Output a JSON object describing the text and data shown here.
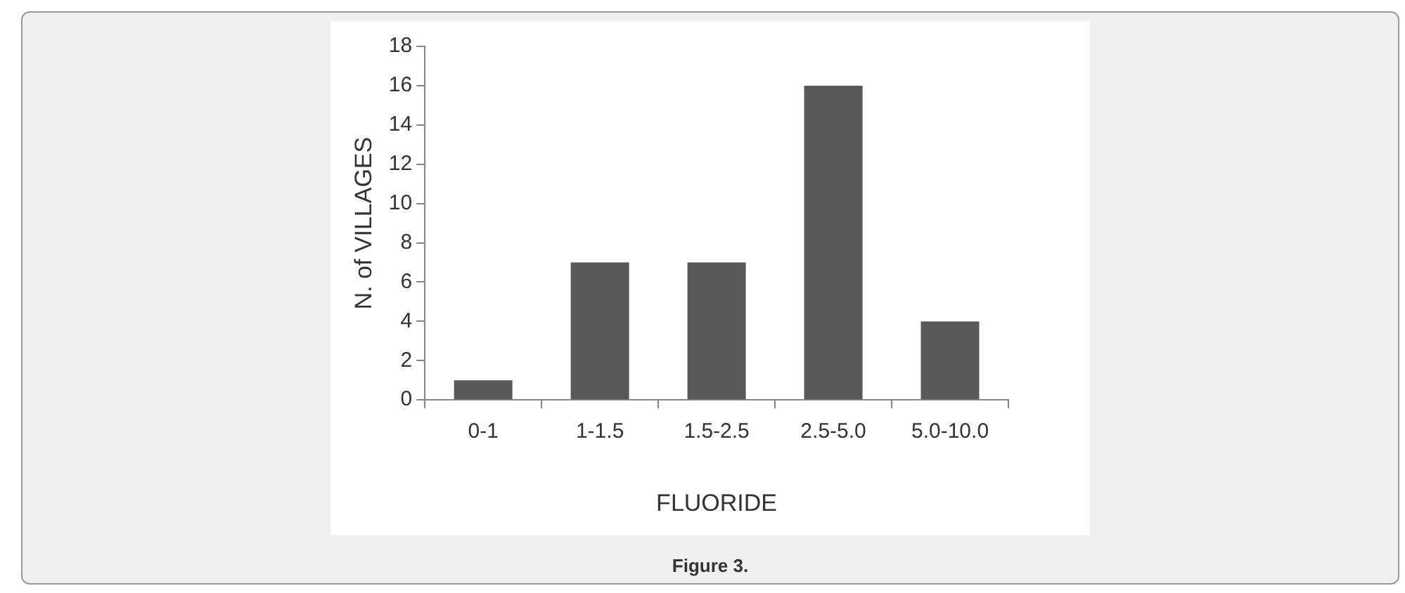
{
  "chart_data": {
    "type": "bar",
    "xlabel": "FLUORIDE",
    "ylabel": "N. of VILLAGES",
    "categories": [
      "0-1",
      "1-1.5",
      "1.5-2.5",
      "2.5-5.0",
      "5.0-10.0"
    ],
    "values": [
      1,
      7,
      7,
      16,
      4
    ],
    "color": "#595959",
    "ylim": [
      0,
      18
    ],
    "yticks": [
      0,
      2,
      4,
      6,
      8,
      10,
      12,
      14,
      16,
      18
    ],
    "grid": false,
    "legend": false,
    "annotations": [
      "Figure 3."
    ]
  }
}
